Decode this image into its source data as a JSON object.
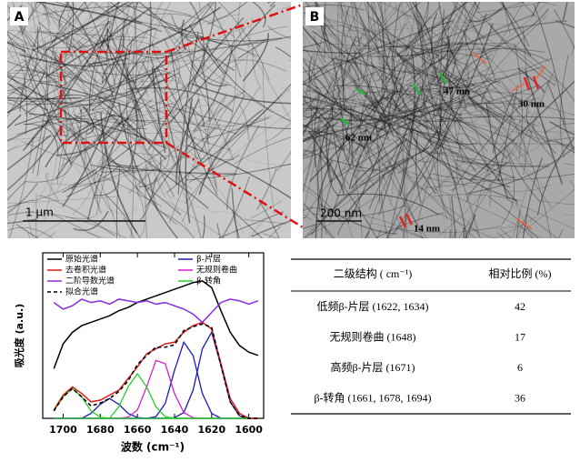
{
  "panel_a": {
    "label": "A",
    "scale_bar": "1 μm"
  },
  "panel_b": {
    "label": "B",
    "scale_bar": "200 nm",
    "annotations": [
      "47 nm",
      "30 nm",
      "62 nm",
      "14 nm"
    ]
  },
  "chart_data": {
    "type": "line",
    "x_label": "波数 (cm⁻¹)",
    "y_label": "吸光度 (a.u.)",
    "x": [
      1705,
      1700,
      1695,
      1690,
      1685,
      1680,
      1675,
      1670,
      1665,
      1660,
      1655,
      1650,
      1645,
      1640,
      1635,
      1630,
      1625,
      1620,
      1615,
      1610,
      1605,
      1600,
      1595
    ],
    "xlim": [
      1711,
      1592
    ],
    "xticks": [
      1700,
      1680,
      1660,
      1640,
      1620,
      1600
    ],
    "ylim": [
      0,
      1
    ],
    "series": [
      {
        "name": "原始光谱",
        "color": "#000000",
        "values": [
          0.3,
          0.45,
          0.52,
          0.56,
          0.58,
          0.6,
          0.62,
          0.65,
          0.67,
          0.7,
          0.72,
          0.74,
          0.76,
          0.78,
          0.8,
          0.82,
          0.83,
          0.79,
          0.65,
          0.52,
          0.44,
          0.4,
          0.38
        ]
      },
      {
        "name": "去卷积光谱",
        "color": "#d81c1c",
        "values": [
          0.05,
          0.14,
          0.19,
          0.15,
          0.1,
          0.11,
          0.14,
          0.17,
          0.24,
          0.31,
          0.39,
          0.42,
          0.45,
          0.46,
          0.52,
          0.56,
          0.58,
          0.54,
          0.33,
          0.12,
          0.03,
          0,
          0
        ]
      },
      {
        "name": "二阶导数光谱",
        "color": "#8a2be2",
        "values": [
          0.7,
          0.66,
          0.68,
          0.72,
          0.7,
          0.71,
          0.69,
          0.72,
          0.71,
          0.7,
          0.71,
          0.69,
          0.7,
          0.68,
          0.66,
          0.63,
          0.58,
          0.64,
          0.7,
          0.72,
          0.71,
          0.69,
          0.71
        ]
      },
      {
        "name": "拟合光谱",
        "color": "#000000",
        "dashed": true,
        "values": [
          0.045,
          0.13,
          0.18,
          0.13,
          0.075,
          0.092,
          0.12,
          0.162,
          0.227,
          0.325,
          0.38,
          0.43,
          0.43,
          0.444,
          0.53,
          0.554,
          0.57,
          0.55,
          0.32,
          0.1,
          0.015,
          0,
          0
        ]
      }
    ],
    "components": [
      {
        "name": "β-片层",
        "color": "#1a1ab8",
        "peaks": [
          [
            0,
            0,
            0,
            0,
            0.03,
            0.085,
            0.12,
            0.085,
            0.03,
            0.005,
            0,
            0,
            0,
            0,
            0,
            0,
            0,
            0,
            0,
            0,
            0,
            0,
            0
          ],
          [
            0,
            0,
            0,
            0,
            0,
            0,
            0,
            0,
            0,
            0,
            0,
            0.01,
            0.09,
            0.29,
            0.46,
            0.38,
            0.15,
            0.03,
            0,
            0,
            0,
            0,
            0
          ],
          [
            0,
            0,
            0,
            0,
            0,
            0,
            0,
            0,
            0,
            0,
            0,
            0,
            0,
            0.004,
            0.035,
            0.17,
            0.42,
            0.52,
            0.32,
            0.1,
            0.015,
            0,
            0
          ]
        ]
      },
      {
        "name": "无规则卷曲",
        "color": "#d21fd2",
        "peaks": [
          [
            0,
            0,
            0,
            0,
            0,
            0,
            0,
            0,
            0.007,
            0.05,
            0.19,
            0.35,
            0.33,
            0.15,
            0.035,
            0.004,
            0,
            0,
            0,
            0,
            0,
            0,
            0
          ]
        ]
      },
      {
        "name": "β-转角",
        "color": "#22d022",
        "peaks": [
          [
            0.045,
            0.13,
            0.18,
            0.13,
            0.045,
            0.007,
            0,
            0,
            0,
            0,
            0,
            0,
            0,
            0,
            0,
            0,
            0,
            0,
            0,
            0,
            0,
            0,
            0
          ],
          [
            0,
            0,
            0,
            0,
            0,
            0,
            0,
            0.07,
            0.19,
            0.27,
            0.19,
            0.07,
            0.01,
            0,
            0,
            0,
            0,
            0,
            0,
            0,
            0,
            0,
            0
          ]
        ]
      }
    ]
  },
  "table": {
    "headers": [
      "二级结构 ( cm⁻¹)",
      "相对比例 (%)"
    ],
    "rows": [
      [
        "低频β-片层 (1622, 1634)",
        42
      ],
      [
        "无规则卷曲 (1648)",
        17
      ],
      [
        "高频β-片层 (1671)",
        6
      ],
      [
        "β-转角 (1661, 1678, 1694)",
        36
      ]
    ]
  }
}
